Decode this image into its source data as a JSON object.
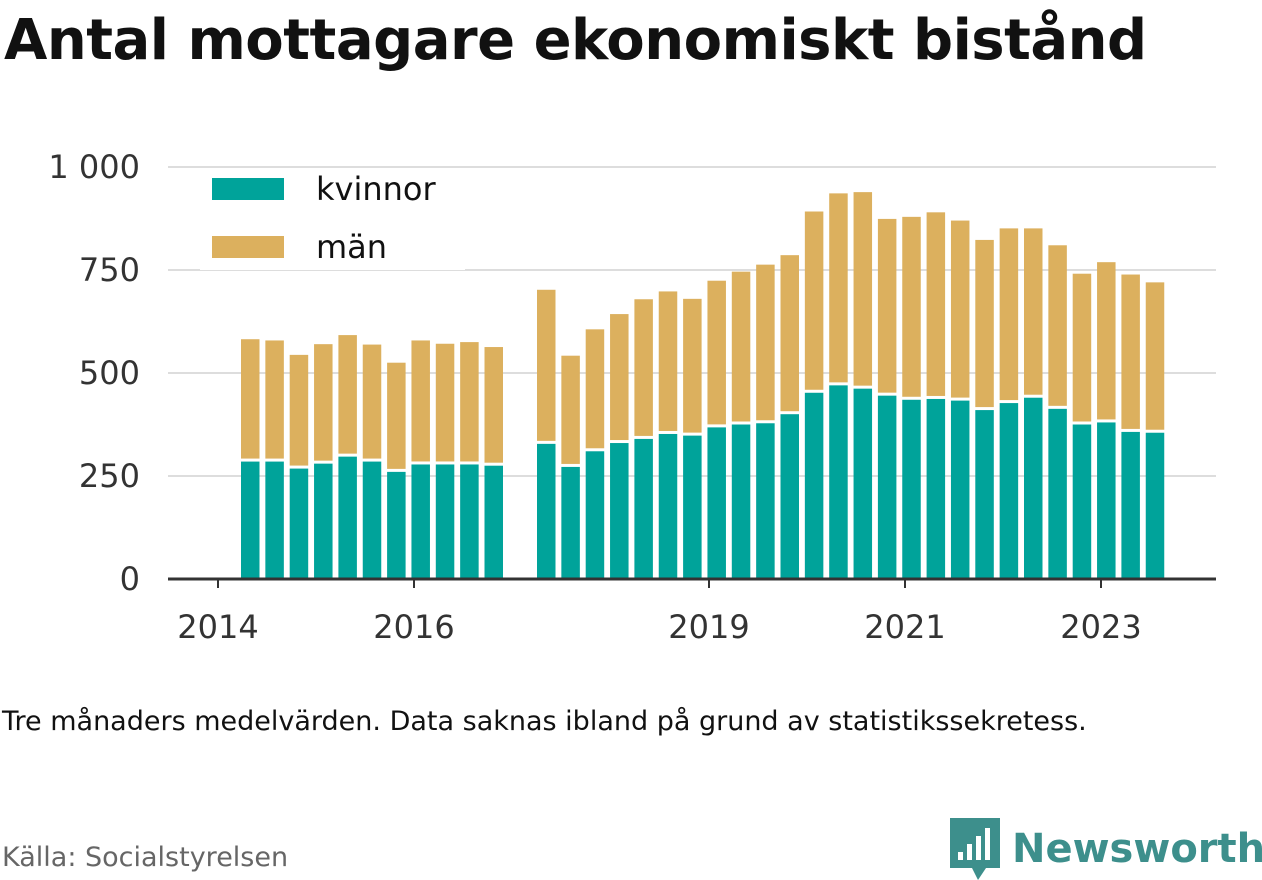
{
  "title": "Antal mottagare ekonomiskt bistånd",
  "note": "Tre månaders medelvärden. Data saknas ibland på grund av statistikssekretess.",
  "source": "Källa: Socialstyrelsen",
  "brand": {
    "name": "Newsworthy",
    "icon": "newsworthy-logo-icon",
    "color": "#3d8f8c"
  },
  "colors": {
    "kvinnor": "#00a39a",
    "man": "#dcb05e",
    "grid": "#dddddd",
    "axis": "#333333"
  },
  "chart_data": {
    "type": "bar",
    "stacked": true,
    "x_tick_labels": [
      "2014",
      "2016",
      "2019",
      "2021",
      "2023"
    ],
    "y_ticks": [
      0,
      250,
      500,
      750,
      1000
    ],
    "y_tick_labels": [
      "0",
      "250",
      "500",
      "750",
      "1 000"
    ],
    "ylim": [
      0,
      1000
    ],
    "legend": {
      "position": "top-left",
      "entries": [
        "kvinnor",
        "män"
      ]
    },
    "grid": true,
    "series": [
      {
        "name": "kvinnor",
        "values": [
          285,
          285,
          268,
          280,
          297,
          285,
          260,
          278,
          278,
          278,
          275,
          328,
          272,
          310,
          330,
          340,
          352,
          348,
          368,
          375,
          378,
          400,
          452,
          470,
          462,
          445,
          435,
          437,
          433,
          410,
          427,
          440,
          413,
          375,
          380,
          357,
          355
        ]
      },
      {
        "name": "män",
        "values": [
          297,
          294,
          276,
          290,
          295,
          284,
          265,
          301,
          293,
          297,
          288,
          374,
          270,
          296,
          313,
          339,
          346,
          332,
          356,
          371,
          385,
          386,
          440,
          466,
          477,
          429,
          444,
          453,
          437,
          413,
          424,
          411,
          397,
          366,
          389,
          382,
          365
        ]
      }
    ]
  }
}
